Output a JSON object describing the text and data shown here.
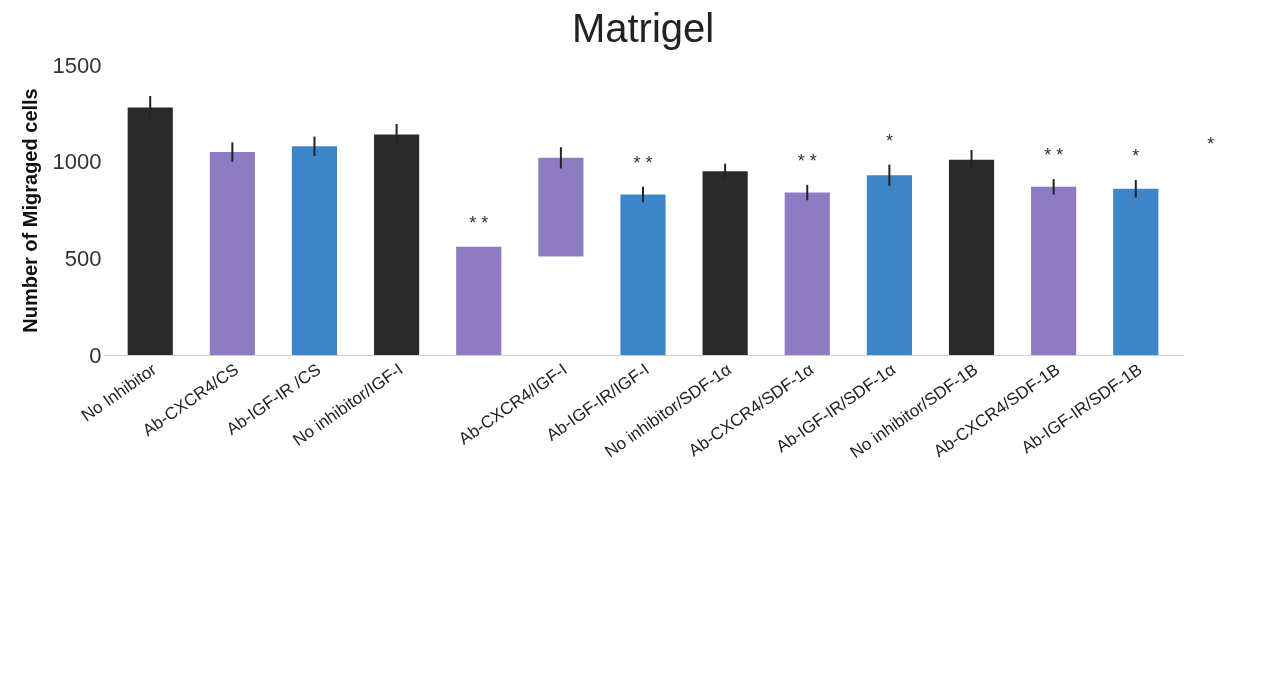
{
  "chart_data": {
    "type": "bar",
    "title": "Matrigel",
    "ylabel": "Number of Migraged cells",
    "categories": [
      "No Inhibitor",
      "Ab-CXCR4/CS",
      "Ab-IGF-IR /CS",
      "No inhibitor/IGF-I",
      null,
      "Ab-CXCR4/IGF-I",
      "Ab-IGF-IR/IGF-I",
      "No inhibitor/SDF-1α",
      "Ab-CXCR4/SDF-1α",
      "Ab-IGF-IR/SDF-1α",
      "No inhibitor/SDF-1B",
      "Ab-CXCR4/SDF-1B",
      "Ab-IGF-IR/SDF-1B"
    ],
    "values": [
      1280,
      1050,
      1080,
      1140,
      560,
      510,
      830,
      950,
      840,
      930,
      1010,
      870,
      860
    ],
    "base": [
      0,
      0,
      0,
      0,
      0,
      510,
      0,
      0,
      0,
      0,
      0,
      0,
      0
    ],
    "errors": [
      60,
      50,
      50,
      55,
      null,
      55,
      40,
      40,
      40,
      55,
      50,
      40,
      45
    ],
    "colors": [
      "#2a2a2a",
      "#8e7cc3",
      "#3d85c6",
      "#2a2a2a",
      "#8e7cc3",
      "#8e7cc3",
      "#3d85c6",
      "#2a2a2a",
      "#8e7cc3",
      "#3d85c6",
      "#2a2a2a",
      "#8e7cc3",
      "#3d85c6"
    ],
    "ylim": [
      0,
      1500
    ],
    "yticks": [
      0,
      500,
      1000,
      1500
    ],
    "grid": false,
    "annotations": [
      {
        "text": "* *",
        "y": 560
      },
      {
        "text": "* *",
        "x": "Ab-IGF-IR/IGF-I",
        "y": 830
      },
      {
        "text": "* *",
        "x": "Ab-CXCR4/SDF-1α",
        "y": 840
      },
      {
        "text": "*",
        "x": "Ab-IGF-IR/SDF-1α",
        "y": 930
      },
      {
        "text": "* *",
        "x": "Ab-CXCR4/SDF-1B",
        "y": 870
      },
      {
        "text": "*",
        "x": "Ab-IGF-IR/SDF-1B",
        "y": 860
      },
      "*"
    ]
  }
}
